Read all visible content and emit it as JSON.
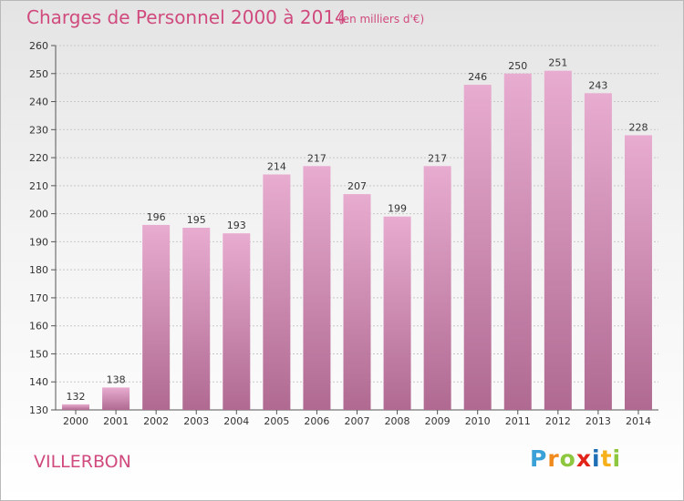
{
  "header": {
    "title": "Charges de Personnel 2000 à 2014",
    "subtitle": "(en milliers d'€)"
  },
  "footer": {
    "commune": "VILLERBON",
    "logo_text": "Proxiti"
  },
  "colors": {
    "bar_top": "#e8acd0",
    "bar_bottom": "#b06a92",
    "title": "#d04a7e",
    "logo": [
      "#3aa0d8",
      "#f08a1c",
      "#8dc63f",
      "#e2231a",
      "#1f6fb5",
      "#f6b01a",
      "#8dc63f"
    ]
  },
  "chart_data": {
    "type": "bar",
    "categories": [
      "2000",
      "2001",
      "2002",
      "2003",
      "2004",
      "2005",
      "2006",
      "2007",
      "2008",
      "2009",
      "2010",
      "2011",
      "2012",
      "2013",
      "2014"
    ],
    "values": [
      132,
      138,
      196,
      195,
      193,
      214,
      217,
      207,
      199,
      217,
      246,
      250,
      251,
      243,
      228
    ],
    "title": "Charges de Personnel 2000 à 2014",
    "subtitle": "(en milliers d'€)",
    "ylim": [
      130,
      260
    ],
    "yticks": [
      130,
      140,
      150,
      160,
      170,
      180,
      190,
      200,
      210,
      220,
      230,
      240,
      250,
      260
    ],
    "grid": true,
    "data_labels": true
  }
}
